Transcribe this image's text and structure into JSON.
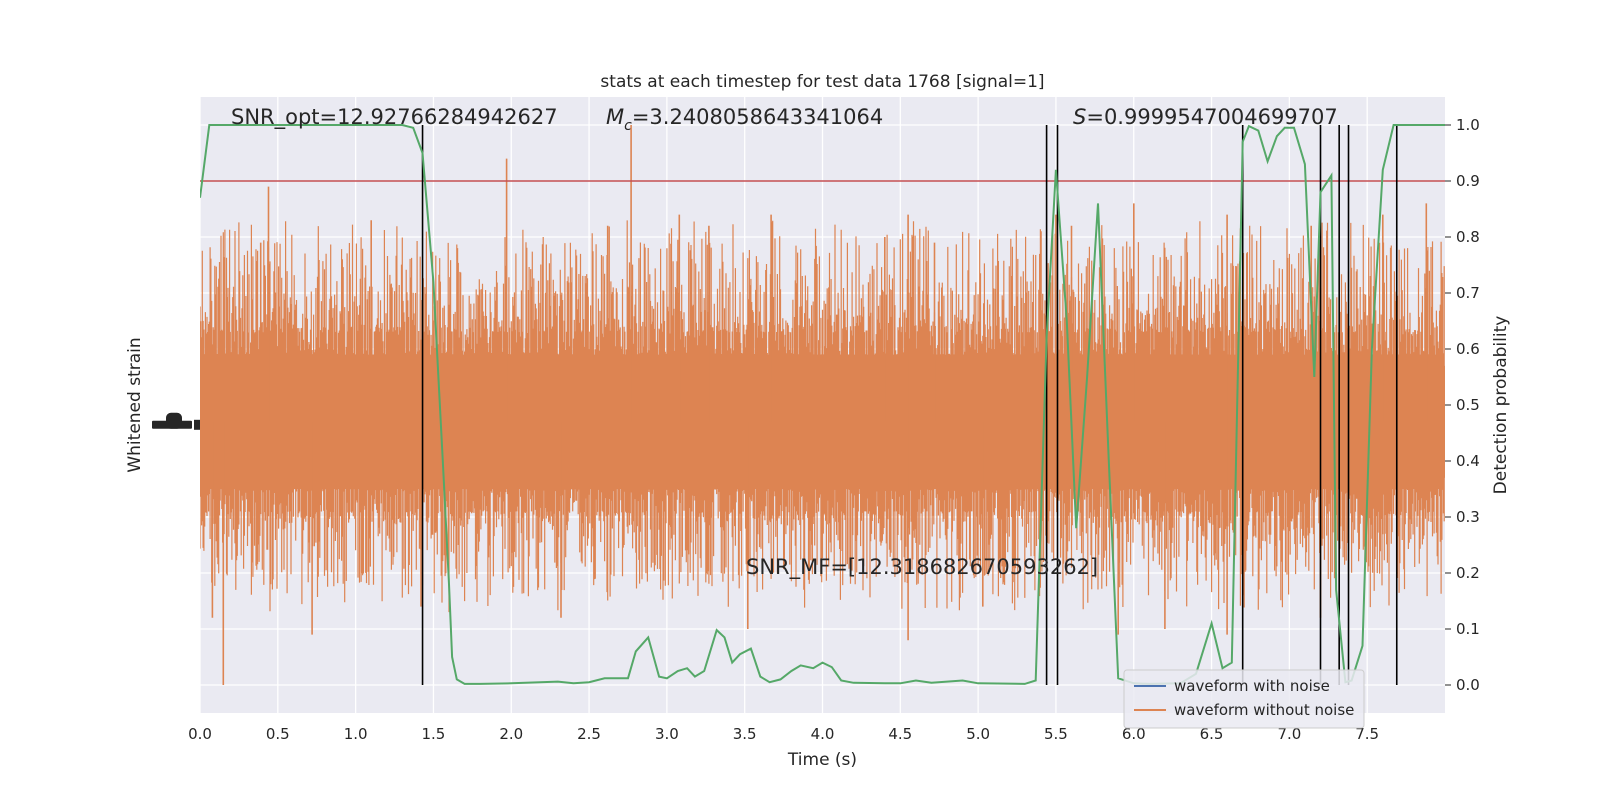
{
  "chart_data": {
    "type": "line",
    "title": "stats at each timestep for test data 1768 [signal=1]",
    "xlabel": "Time (s)",
    "ylabel_left": "Whitened strain",
    "ylabel_right": "Detection probability",
    "xlim": [
      0.0,
      8.0
    ],
    "ylim_right": [
      -0.05,
      1.05
    ],
    "x_ticks": [
      "0.0",
      "0.5",
      "1.0",
      "1.5",
      "2.0",
      "2.5",
      "3.0",
      "3.5",
      "4.0",
      "4.5",
      "5.0",
      "5.5",
      "6.0",
      "6.5",
      "7.0",
      "7.5"
    ],
    "y_ticks_right": [
      "0.0",
      "0.1",
      "0.2",
      "0.3",
      "0.4",
      "0.5",
      "0.6",
      "0.7",
      "0.8",
      "0.9",
      "1.0"
    ],
    "grid": true,
    "legend_placement": "lower-right",
    "threshold": 0.9,
    "annotations": {
      "snr_opt": "SNR_opt=12.92766284942627",
      "mc_symbol": "M",
      "mc_sub": "c",
      "mc_value": "=3.2408058643341064",
      "s_symbol": "S",
      "s_value": "=0.9999547004699707",
      "snr_mf": "SNR_MF=[12.318682670593262]"
    },
    "series": [
      {
        "name": "waveform with noise",
        "color": "#4c72b0"
      },
      {
        "name": "waveform without noise",
        "color": "#dd8452"
      }
    ],
    "waveform_envelope": {
      "center": 0.47,
      "core_half_width": 0.1,
      "top_typical": [
        0.68,
        0.72
      ],
      "bottom_typical": [
        0.28,
        0.32
      ]
    },
    "waveform_spikes_up": [
      [
        0.44,
        0.89
      ],
      [
        0.39,
        0.79
      ],
      [
        1.1,
        0.83
      ],
      [
        1.97,
        0.94
      ],
      [
        2.62,
        0.82
      ],
      [
        2.77,
        1.0
      ],
      [
        3.08,
        0.84
      ],
      [
        3.27,
        0.82
      ],
      [
        3.67,
        0.84
      ],
      [
        4.4,
        0.8
      ],
      [
        4.55,
        0.84
      ],
      [
        4.72,
        0.79
      ],
      [
        5.5,
        0.84
      ],
      [
        5.6,
        0.82
      ],
      [
        6.0,
        0.86
      ],
      [
        6.6,
        0.84
      ],
      [
        7.14,
        0.82
      ],
      [
        7.6,
        0.84
      ],
      [
        7.88,
        0.86
      ]
    ],
    "waveform_spikes_down": [
      [
        0.08,
        0.12
      ],
      [
        0.15,
        0.0
      ],
      [
        0.72,
        0.09
      ],
      [
        1.42,
        0.14
      ],
      [
        2.32,
        0.12
      ],
      [
        3.52,
        0.1
      ],
      [
        4.55,
        0.08
      ],
      [
        5.03,
        0.14
      ],
      [
        5.9,
        0.09
      ],
      [
        6.2,
        0.1
      ],
      [
        6.6,
        0.09
      ],
      [
        7.2,
        0.12
      ]
    ],
    "detection_probability": {
      "color": "#55a868",
      "x": [
        0.0,
        0.06,
        0.12,
        0.2,
        0.5,
        1.0,
        1.3,
        1.37,
        1.43,
        1.5,
        1.56,
        1.6,
        1.62,
        1.65,
        1.7,
        1.8,
        2.0,
        2.3,
        2.4,
        2.5,
        2.6,
        2.75,
        2.8,
        2.88,
        2.95,
        3.0,
        3.07,
        3.13,
        3.18,
        3.24,
        3.32,
        3.37,
        3.42,
        3.47,
        3.54,
        3.6,
        3.66,
        3.73,
        3.8,
        3.86,
        3.94,
        4.0,
        4.06,
        4.12,
        4.2,
        4.4,
        4.5,
        4.6,
        4.7,
        4.9,
        5.0,
        5.3,
        5.37,
        5.44,
        5.5,
        5.57,
        5.63,
        5.7,
        5.77,
        5.84,
        5.9,
        6.0,
        6.1,
        6.3,
        6.4,
        6.5,
        6.57,
        6.63,
        6.7,
        6.74,
        6.8,
        6.86,
        6.92,
        6.97,
        7.03,
        7.1,
        7.16,
        7.2,
        7.27,
        7.3,
        7.36,
        7.4,
        7.47,
        7.53,
        7.6,
        7.67,
        7.73,
        7.8,
        7.93,
        8.0
      ],
      "y": [
        0.87,
        1.0,
        1.0,
        1.0,
        1.0,
        1.0,
        1.0,
        0.995,
        0.95,
        0.72,
        0.4,
        0.18,
        0.05,
        0.01,
        0.002,
        0.002,
        0.003,
        0.006,
        0.003,
        0.005,
        0.012,
        0.012,
        0.06,
        0.085,
        0.015,
        0.012,
        0.025,
        0.03,
        0.015,
        0.025,
        0.098,
        0.085,
        0.04,
        0.055,
        0.065,
        0.015,
        0.005,
        0.01,
        0.025,
        0.035,
        0.03,
        0.04,
        0.032,
        0.008,
        0.004,
        0.003,
        0.003,
        0.008,
        0.004,
        0.008,
        0.003,
        0.002,
        0.008,
        0.62,
        0.92,
        0.65,
        0.28,
        0.55,
        0.86,
        0.4,
        0.012,
        0.003,
        0.002,
        0.003,
        0.02,
        0.11,
        0.03,
        0.04,
        0.97,
        0.998,
        0.99,
        0.935,
        0.98,
        0.995,
        0.995,
        0.93,
        0.55,
        0.88,
        0.91,
        0.17,
        0.005,
        0.008,
        0.07,
        0.6,
        0.92,
        1.0,
        1.0,
        1.0,
        1.0,
        1.0
      ]
    },
    "event_markers_x": [
      1.43,
      5.44,
      5.51,
      6.7,
      7.2,
      7.32,
      7.38,
      7.69
    ]
  }
}
